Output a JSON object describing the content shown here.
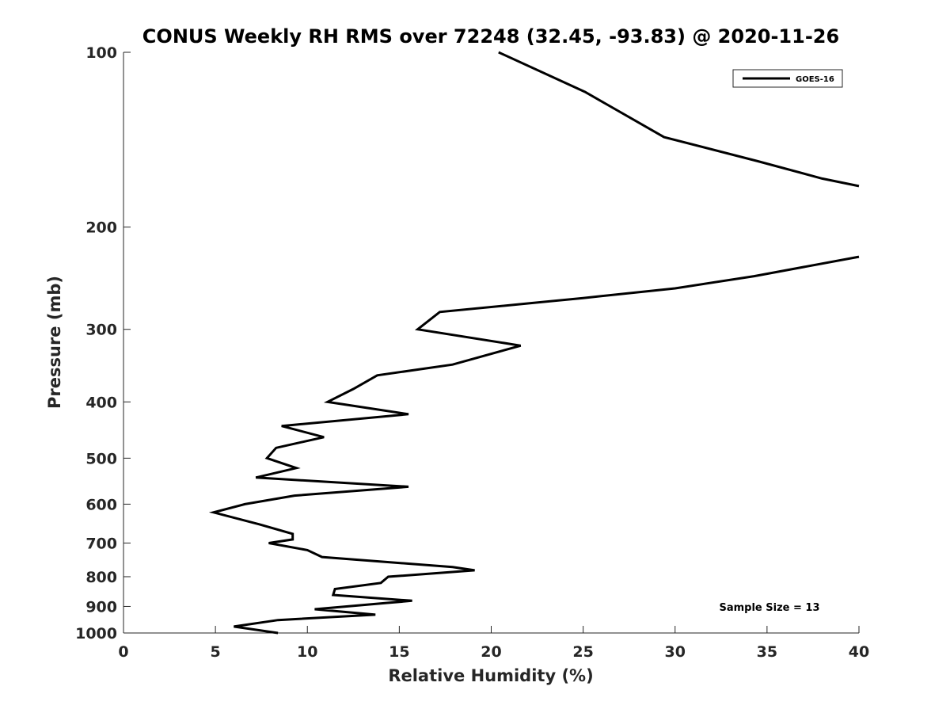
{
  "chart_data": {
    "type": "line",
    "title": "CONUS Weekly RH RMS over 72248 (32.45, -93.83) @ 2020-11-26",
    "xlabel": "Relative Humidity (%)",
    "ylabel": "Pressure (mb)",
    "xlim": [
      0,
      40
    ],
    "ylim": [
      100,
      1000
    ],
    "y_scale": "log",
    "y_reversed": true,
    "grid": false,
    "legend_position": "top-right",
    "x_ticks": [
      0,
      5,
      10,
      15,
      20,
      25,
      30,
      35,
      40
    ],
    "y_ticks": [
      100,
      200,
      300,
      400,
      500,
      600,
      700,
      800,
      900,
      1000
    ],
    "annotation": "Sample Size = 13",
    "series": [
      {
        "name": "GOES-16",
        "color": "#000000",
        "segments": [
          [
            {
              "x": 20.4,
              "y": 100
            },
            {
              "x": 25.1,
              "y": 117
            },
            {
              "x": 29.4,
              "y": 140
            },
            {
              "x": 34.5,
              "y": 154
            },
            {
              "x": 38.0,
              "y": 165
            },
            {
              "x": 40.0,
              "y": 170
            }
          ],
          [
            {
              "x": 40.0,
              "y": 225
            },
            {
              "x": 34.3,
              "y": 243
            },
            {
              "x": 30.0,
              "y": 255
            },
            {
              "x": 25.0,
              "y": 265
            },
            {
              "x": 17.2,
              "y": 280
            },
            {
              "x": 16.0,
              "y": 300
            },
            {
              "x": 21.6,
              "y": 320
            },
            {
              "x": 17.9,
              "y": 345
            },
            {
              "x": 13.8,
              "y": 360
            },
            {
              "x": 12.5,
              "y": 380
            },
            {
              "x": 11.1,
              "y": 400
            },
            {
              "x": 15.5,
              "y": 420
            },
            {
              "x": 8.6,
              "y": 440
            },
            {
              "x": 10.9,
              "y": 460
            },
            {
              "x": 8.3,
              "y": 480
            },
            {
              "x": 7.8,
              "y": 500
            },
            {
              "x": 9.4,
              "y": 520
            },
            {
              "x": 7.2,
              "y": 540
            },
            {
              "x": 15.5,
              "y": 560
            },
            {
              "x": 9.3,
              "y": 580
            },
            {
              "x": 6.6,
              "y": 600
            },
            {
              "x": 4.9,
              "y": 620
            },
            {
              "x": 7.4,
              "y": 650
            },
            {
              "x": 9.2,
              "y": 675
            },
            {
              "x": 9.2,
              "y": 690
            },
            {
              "x": 7.9,
              "y": 700
            },
            {
              "x": 10.0,
              "y": 720
            },
            {
              "x": 10.8,
              "y": 740
            },
            {
              "x": 17.9,
              "y": 770
            },
            {
              "x": 19.1,
              "y": 780
            },
            {
              "x": 14.4,
              "y": 800
            },
            {
              "x": 14.0,
              "y": 820
            },
            {
              "x": 11.5,
              "y": 840
            },
            {
              "x": 11.4,
              "y": 860
            },
            {
              "x": 15.7,
              "y": 880
            },
            {
              "x": 10.4,
              "y": 910
            },
            {
              "x": 13.7,
              "y": 930
            },
            {
              "x": 8.4,
              "y": 950
            },
            {
              "x": 6.0,
              "y": 975
            },
            {
              "x": 8.4,
              "y": 1000
            }
          ]
        ]
      }
    ]
  }
}
